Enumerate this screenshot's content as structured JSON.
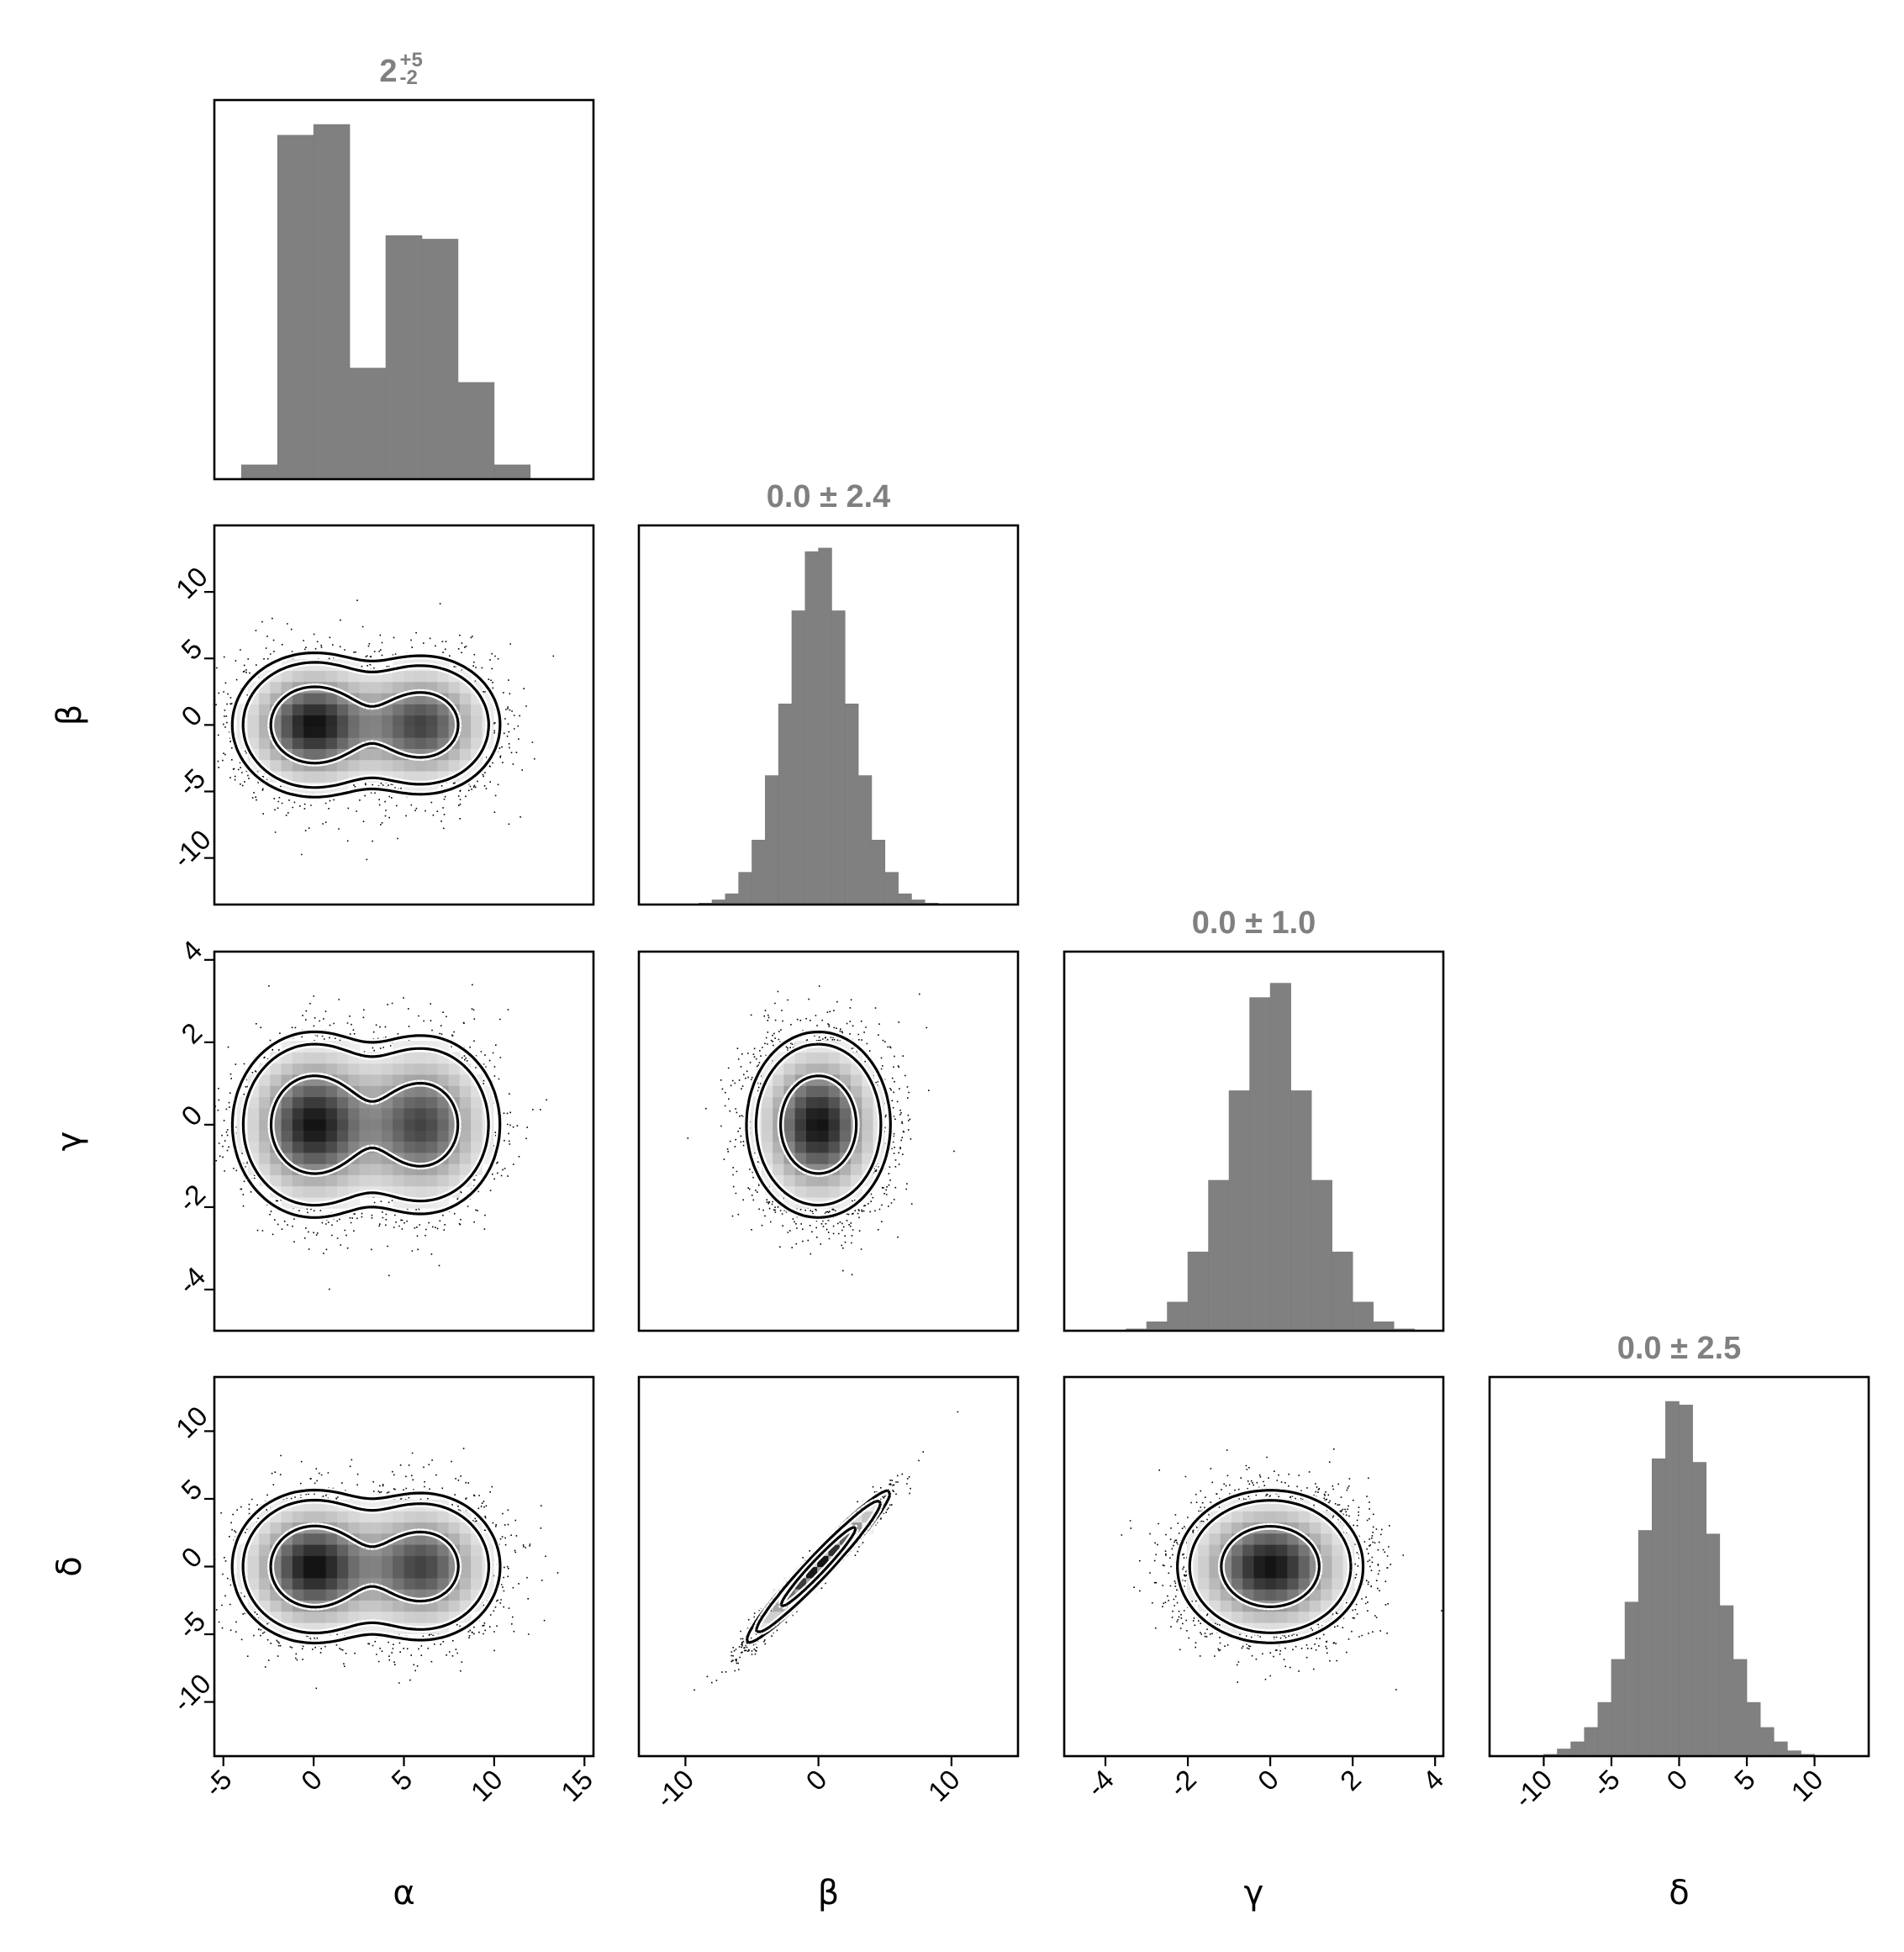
{
  "chart_data": {
    "type": "corner",
    "parameters": [
      "α",
      "β",
      "γ",
      "δ"
    ],
    "titles": [
      {
        "main": "2",
        "sup": "+5",
        "sub": "-2"
      },
      {
        "main": "0.0 ± 2.4"
      },
      {
        "main": "0.0 ± 1.0"
      },
      {
        "main": "0.0 ± 2.5"
      }
    ],
    "ranges": [
      [
        -5.5,
        15.5
      ],
      [
        -13.5,
        15
      ],
      [
        -5,
        4.2
      ],
      [
        -14,
        14
      ]
    ],
    "ticks": [
      [
        -5,
        0,
        5,
        10,
        15
      ],
      [
        -10,
        0,
        10
      ],
      [
        -4,
        -2,
        0,
        2,
        4
      ],
      [
        -10,
        -5,
        0,
        5,
        10
      ]
    ],
    "row_ticks": {
      "β": [
        -10,
        -5,
        0,
        5,
        10
      ],
      "γ": [
        -4,
        -2,
        0,
        2,
        4
      ],
      "δ": [
        -10,
        -5,
        0,
        5,
        10
      ]
    },
    "histograms": [
      {
        "parameter": "α",
        "bin_edges": [
          -4,
          -2,
          0,
          2,
          4,
          6,
          8,
          10,
          12
        ],
        "counts": [
          0.04,
          0.96,
          0.99,
          0.31,
          0.68,
          0.67,
          0.27,
          0.04
        ]
      },
      {
        "parameter": "β",
        "bin_edges": [
          -9,
          -8,
          -7,
          -6,
          -5,
          -4,
          -3,
          -2,
          -1,
          0,
          1,
          2,
          3,
          4,
          5,
          6,
          7,
          8,
          9
        ],
        "counts": [
          0.004,
          0.013,
          0.03,
          0.09,
          0.18,
          0.36,
          0.56,
          0.82,
          0.985,
          0.995,
          0.82,
          0.56,
          0.36,
          0.18,
          0.09,
          0.03,
          0.013,
          0.004
        ]
      },
      {
        "parameter": "γ",
        "bin_edges": [
          -3.5,
          -3,
          -2.5,
          -2,
          -1.5,
          -1,
          -0.5,
          0,
          0.5,
          1,
          1.5,
          2,
          2.5,
          3,
          3.5
        ],
        "counts": [
          0.005,
          0.025,
          0.08,
          0.22,
          0.42,
          0.67,
          0.93,
          0.97,
          0.67,
          0.42,
          0.22,
          0.08,
          0.025,
          0.005
        ]
      },
      {
        "parameter": "δ",
        "bin_edges": [
          -10,
          -9,
          -8,
          -7,
          -6,
          -5,
          -4,
          -3,
          -2,
          -1,
          0,
          1,
          2,
          3,
          4,
          5,
          6,
          7,
          8,
          9,
          10
        ],
        "counts": [
          0.005,
          0.02,
          0.04,
          0.08,
          0.15,
          0.27,
          0.43,
          0.63,
          0.83,
          0.99,
          0.98,
          0.82,
          0.62,
          0.42,
          0.27,
          0.15,
          0.08,
          0.04,
          0.015,
          0.005
        ]
      }
    ],
    "pair_distributions": [
      {
        "x": "α",
        "y": "β",
        "components": [
          {
            "mean": [
              0,
              0
            ],
            "sd": [
              2.0,
              2.4
            ],
            "weight": 0.55
          },
          {
            "mean": [
              6,
              0
            ],
            "sd": [
              2.0,
              2.4
            ],
            "weight": 0.45
          }
        ],
        "correlation": 0
      },
      {
        "x": "α",
        "y": "γ",
        "components": [
          {
            "mean": [
              0,
              0
            ],
            "sd": [
              2.0,
              1.0
            ],
            "weight": 0.55
          },
          {
            "mean": [
              6,
              0
            ],
            "sd": [
              2.0,
              1.0
            ],
            "weight": 0.45
          }
        ],
        "correlation": 0
      },
      {
        "x": "β",
        "y": "γ",
        "components": [
          {
            "mean": [
              0,
              0
            ],
            "sd": [
              2.4,
              1.0
            ],
            "weight": 1
          }
        ],
        "correlation": 0
      },
      {
        "x": "α",
        "y": "δ",
        "components": [
          {
            "mean": [
              0,
              0
            ],
            "sd": [
              2.0,
              2.5
            ],
            "weight": 0.55
          },
          {
            "mean": [
              6,
              0
            ],
            "sd": [
              2.0,
              2.5
            ],
            "weight": 0.45
          }
        ],
        "correlation": 0
      },
      {
        "x": "β",
        "y": "δ",
        "components": [
          {
            "mean": [
              0,
              0
            ],
            "sd": [
              2.4,
              2.5
            ],
            "weight": 1
          }
        ],
        "correlation": 0.97
      },
      {
        "x": "γ",
        "y": "δ",
        "components": [
          {
            "mean": [
              0,
              0
            ],
            "sd": [
              1.0,
              2.5
            ],
            "weight": 1
          }
        ],
        "correlation": 0
      }
    ],
    "colors": {
      "histogram": "#808080",
      "title": "#808080",
      "contour": "#000000"
    },
    "grid": false
  }
}
